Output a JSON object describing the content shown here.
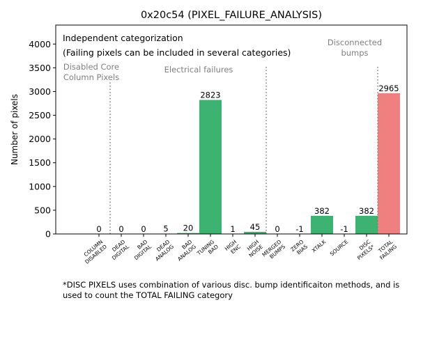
{
  "chart_data": {
    "type": "bar",
    "title": "0x20c54 (PIXEL_FAILURE_ANALYSIS)",
    "ylabel": "Number of pixels",
    "xlabel": "",
    "ylim": [
      0,
      4400
    ],
    "yticks": [
      0,
      500,
      1000,
      1500,
      2000,
      2500,
      3000,
      3500,
      4000
    ],
    "grid": false,
    "colors": {
      "normal": "#3cb371",
      "total": "#f08080",
      "divider": "#7f7f7f",
      "annotation": "#808080"
    },
    "categories": [
      {
        "label": [
          "COLUMN",
          "DISABLED"
        ],
        "value": 0,
        "display": "0",
        "bar": "normal"
      },
      {
        "label": [
          "DEAD",
          "DIGITAL"
        ],
        "value": 0,
        "display": "0",
        "bar": "normal"
      },
      {
        "label": [
          "BAD",
          "DIGITAL"
        ],
        "value": 0,
        "display": "0",
        "bar": "normal"
      },
      {
        "label": [
          "DEAD",
          "ANALOG"
        ],
        "value": 5,
        "display": "5",
        "bar": "normal"
      },
      {
        "label": [
          "BAD",
          "ANALOG"
        ],
        "value": 20,
        "display": "20",
        "bar": "normal"
      },
      {
        "label": [
          "TUNING",
          "BAD"
        ],
        "value": 2823,
        "display": "2823",
        "bar": "normal"
      },
      {
        "label": [
          "HIGH",
          "ENC"
        ],
        "value": 1,
        "display": "1",
        "bar": "normal"
      },
      {
        "label": [
          "HIGH",
          "NOISE"
        ],
        "value": 45,
        "display": "45",
        "bar": "normal"
      },
      {
        "label": [
          "MERGED",
          "BUMPS"
        ],
        "value": 0,
        "display": "0",
        "bar": "normal"
      },
      {
        "label": [
          "ZERO",
          "BIAS"
        ],
        "value": -1,
        "display": "-1",
        "bar": "normal"
      },
      {
        "label": [
          "XTALK"
        ],
        "value": 382,
        "display": "382",
        "bar": "normal"
      },
      {
        "label": [
          "SOURCE"
        ],
        "value": -1,
        "display": "-1",
        "bar": "normal"
      },
      {
        "label": [
          "DISC",
          "PIXELS*"
        ],
        "value": 382,
        "display": "382",
        "bar": "normal"
      },
      {
        "label": [
          "TOTAL",
          "FAILING"
        ],
        "value": 2965,
        "display": "2965",
        "bar": "total"
      }
    ],
    "dividers": [
      {
        "after_index": 0,
        "top": 3200
      },
      {
        "after_index": 7,
        "top": 3550
      },
      {
        "after_index": 12,
        "top": 3550
      }
    ],
    "group_labels": [
      {
        "lines": [
          "Disabled Core",
          "Column Pixels"
        ]
      },
      {
        "lines": [
          "Electrical failures"
        ]
      },
      {
        "lines": [
          "Disconnected",
          "bumps"
        ]
      }
    ],
    "annotation": [
      "Independent categorization",
      "(Failing pixels can be included in several categories)"
    ],
    "footnote": [
      "*DISC PIXELS uses combination of various disc. bump identificaiton methods, and is",
      "used to count the TOTAL FAILING category"
    ]
  }
}
